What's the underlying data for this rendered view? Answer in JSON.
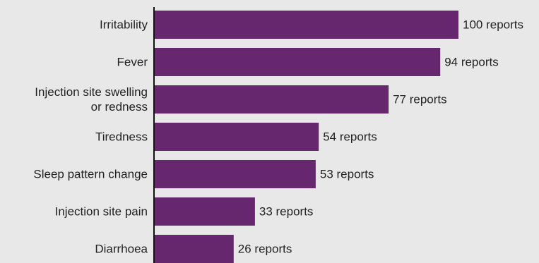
{
  "chart_data": {
    "type": "bar",
    "orientation": "horizontal",
    "categories": [
      [
        "Irritability"
      ],
      [
        "Fever"
      ],
      [
        "Injection site swelling",
        "or redness"
      ],
      [
        "Tiredness"
      ],
      [
        "Sleep pattern change"
      ],
      [
        "Injection site pain"
      ],
      [
        "Diarrhoea"
      ]
    ],
    "values": [
      100,
      94,
      77,
      54,
      53,
      33,
      26
    ],
    "value_labels": [
      "100 reports",
      "94 reports",
      "77 reports",
      "54 reports",
      "53 reports",
      "33 reports",
      "26 reports"
    ],
    "xlim": [
      0,
      100
    ],
    "grid": false,
    "colors": {
      "bar": "#66276f",
      "axis": "#111111",
      "background": "#e8e8e8",
      "text": "#222222"
    }
  }
}
